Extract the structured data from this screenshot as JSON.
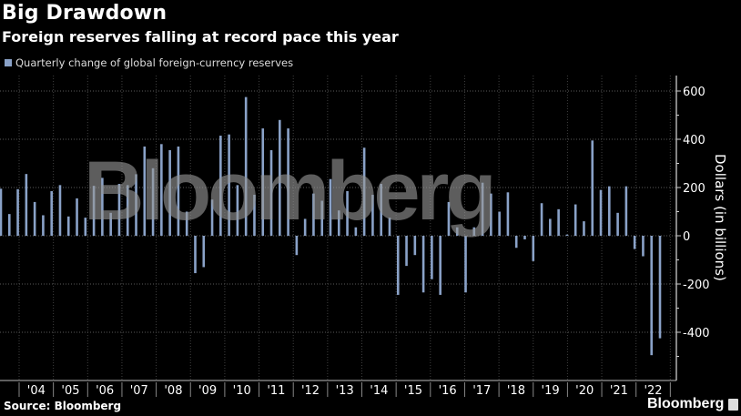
{
  "header": {
    "title": "Big Drawdown",
    "subtitle": "Foreign reserves falling at record pace this year"
  },
  "legend": {
    "label": "Quarterly change of global foreign-currency reserves",
    "color": "#8aa2c8"
  },
  "footer": {
    "source": "Source: Bloomberg",
    "brand": "Bloomberg"
  },
  "watermark": "Bloomberg",
  "colors": {
    "bar": "#8aa2c8",
    "background": "#000000",
    "grid": "#555555",
    "axis": "#cccccc",
    "text": "#ffffff"
  },
  "chart_data": {
    "type": "bar",
    "title": "Big Drawdown",
    "subtitle": "Foreign reserves falling at record pace this year",
    "xlabel": "",
    "ylabel": "Dollars (in billions)",
    "ylim": [
      -550,
      680
    ],
    "yticks": [
      600,
      400,
      200,
      0,
      -200,
      -400
    ],
    "y_axis_position": "right",
    "grid": true,
    "legend": [
      "Quarterly change of global foreign-currency reserves"
    ],
    "legend_position": "top-left",
    "x_tick_labels": [
      "'04",
      "'05",
      "'06",
      "'07",
      "'08",
      "'09",
      "'10",
      "'11",
      "'12",
      "'13",
      "'14",
      "'15",
      "'16",
      "'17",
      "'18",
      "'19",
      "'20",
      "'21",
      "'22"
    ],
    "series": [
      {
        "name": "Quarterly change of global foreign-currency reserves",
        "values": [
          195,
          90,
          193,
          256,
          140,
          85,
          185,
          210,
          80,
          155,
          75,
          207,
          240,
          95,
          215,
          210,
          255,
          370,
          280,
          380,
          355,
          370,
          100,
          -155,
          -130,
          150,
          415,
          420,
          210,
          575,
          170,
          445,
          355,
          480,
          445,
          -80,
          70,
          175,
          145,
          235,
          105,
          185,
          35,
          365,
          170,
          215,
          75,
          -245,
          -125,
          -80,
          -235,
          -180,
          -245,
          140,
          35,
          -235,
          35,
          220,
          175,
          100,
          180,
          -50,
          -15,
          -105,
          135,
          70,
          110,
          5,
          130,
          60,
          395,
          190,
          205,
          95,
          205,
          -55,
          -85,
          -495,
          -425
        ]
      }
    ]
  }
}
